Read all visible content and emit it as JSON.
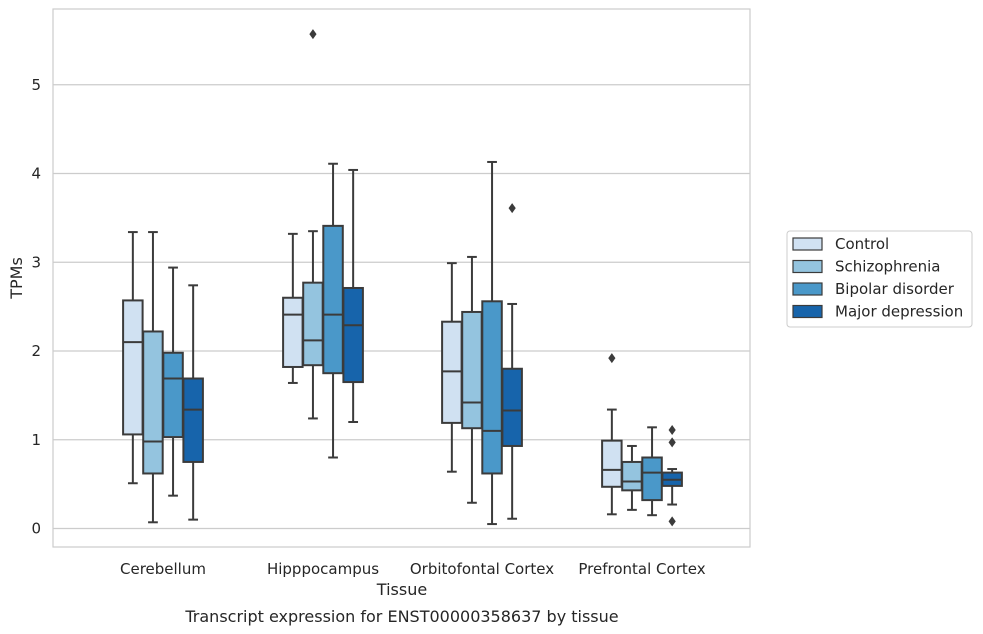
{
  "chart_data": {
    "type": "boxplot",
    "xlabel": "Tissue",
    "ylabel": "TPMs",
    "caption": "Transcript expression for ENST00000358637 by tissue",
    "ylim": [
      -0.2,
      5.88
    ],
    "yticks": [
      0,
      1,
      2,
      3,
      4,
      5
    ],
    "grid": "horizontal",
    "legend_position": "right",
    "categories": [
      "Cerebellum",
      "Hipppocampus",
      "Orbitofontal Cortex",
      "Prefrontal Cortex"
    ],
    "series": [
      {
        "name": "Control",
        "color": "#d0e1f2",
        "boxes": [
          {
            "whislo": 0.51,
            "q1": 1.06,
            "med": 2.1,
            "q3": 2.57,
            "whishi": 3.34,
            "fliers": []
          },
          {
            "whislo": 1.64,
            "q1": 1.82,
            "med": 2.41,
            "q3": 2.6,
            "whishi": 3.32,
            "fliers": []
          },
          {
            "whislo": 0.64,
            "q1": 1.19,
            "med": 1.77,
            "q3": 2.33,
            "whishi": 2.99,
            "fliers": []
          },
          {
            "whislo": 0.16,
            "q1": 0.47,
            "med": 0.66,
            "q3": 0.99,
            "whishi": 1.34,
            "fliers": [
              1.92
            ]
          }
        ]
      },
      {
        "name": "Schizophrenia",
        "color": "#94c4df",
        "boxes": [
          {
            "whislo": 0.07,
            "q1": 0.62,
            "med": 0.98,
            "q3": 2.22,
            "whishi": 3.34,
            "fliers": []
          },
          {
            "whislo": 1.24,
            "q1": 1.84,
            "med": 2.12,
            "q3": 2.77,
            "whishi": 3.35,
            "fliers": [
              5.57
            ]
          },
          {
            "whislo": 0.29,
            "q1": 1.13,
            "med": 1.42,
            "q3": 2.44,
            "whishi": 3.06,
            "fliers": []
          },
          {
            "whislo": 0.21,
            "q1": 0.43,
            "med": 0.53,
            "q3": 0.75,
            "whishi": 0.93,
            "fliers": []
          }
        ]
      },
      {
        "name": "Bipolar disorder",
        "color": "#4a98c9",
        "boxes": [
          {
            "whislo": 0.37,
            "q1": 1.03,
            "med": 1.69,
            "q3": 1.98,
            "whishi": 2.94,
            "fliers": []
          },
          {
            "whislo": 0.8,
            "q1": 1.75,
            "med": 2.41,
            "q3": 3.41,
            "whishi": 4.11,
            "fliers": []
          },
          {
            "whislo": 0.05,
            "q1": 0.62,
            "med": 1.1,
            "q3": 2.56,
            "whishi": 4.13,
            "fliers": []
          },
          {
            "whislo": 0.15,
            "q1": 0.32,
            "med": 0.63,
            "q3": 0.8,
            "whishi": 1.14,
            "fliers": []
          }
        ]
      },
      {
        "name": "Major depression",
        "color": "#1764ab",
        "boxes": [
          {
            "whislo": 0.1,
            "q1": 0.75,
            "med": 1.34,
            "q3": 1.69,
            "whishi": 2.74,
            "fliers": []
          },
          {
            "whislo": 1.2,
            "q1": 1.65,
            "med": 2.29,
            "q3": 2.71,
            "whishi": 4.04,
            "fliers": []
          },
          {
            "whislo": 0.11,
            "q1": 0.93,
            "med": 1.33,
            "q3": 1.8,
            "whishi": 2.53,
            "fliers": [
              3.61
            ]
          },
          {
            "whislo": 0.27,
            "q1": 0.48,
            "med": 0.55,
            "q3": 0.63,
            "whishi": 0.67,
            "fliers": [
              0.08,
              0.97,
              1.11
            ]
          }
        ]
      }
    ]
  }
}
